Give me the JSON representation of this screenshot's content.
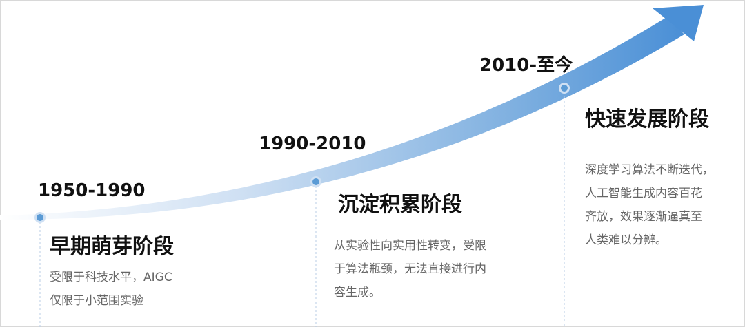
{
  "stages": [
    {
      "period": "1950-1990",
      "title": "早期萌芽阶段",
      "description": [
        "受限于科技水平，AIGC",
        "仅限于小范围实验"
      ]
    },
    {
      "period": "1990-2010",
      "title": "沉淀积累阶段",
      "description": [
        "从实验性向实用性转变，受限",
        "于算法瓶颈，无法直接进行内",
        "容生成。"
      ]
    },
    {
      "period": "2010-至今",
      "title": "快速发展阶段",
      "description": [
        "深度学习算法不断迭代，",
        "人工智能生成内容百花",
        "齐放，效果逐渐逼真至",
        "人类难以分辨。"
      ]
    }
  ]
}
